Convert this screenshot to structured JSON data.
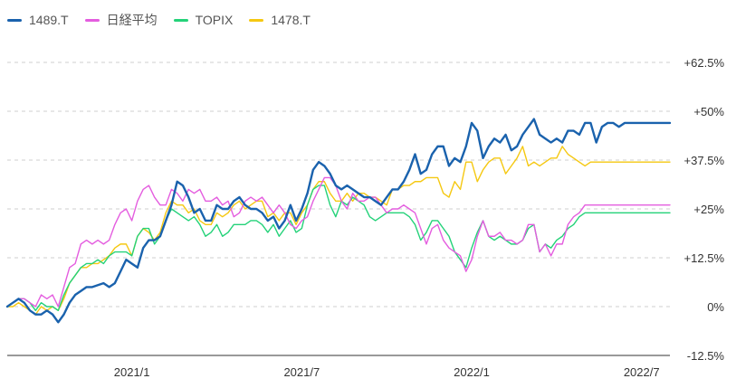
{
  "chart_data": {
    "type": "line",
    "legend_position": "top-left",
    "grid": "horizontal dashed",
    "y_ticks": [
      "+62.5%",
      "+50%",
      "+37.5%",
      "+25%",
      "+12.5%",
      "0%",
      "-12.5%"
    ],
    "y_tick_values": [
      62.5,
      50,
      37.5,
      25,
      12.5,
      0,
      -12.5
    ],
    "ylim": [
      -12.5,
      62.5
    ],
    "x_ticks": [
      "2021/1",
      "2021/7",
      "2022/1",
      "2022/7"
    ],
    "x_tick_index": [
      22,
      52,
      82,
      112
    ],
    "x_count": 118,
    "series": [
      {
        "name": "1489.T",
        "color": "#1a62ad",
        "values": [
          0,
          1,
          2,
          1,
          -1,
          -2,
          -2,
          -1,
          -2,
          -4,
          -2,
          1,
          3,
          4,
          5,
          5,
          5.5,
          6,
          5,
          6,
          9,
          12,
          11,
          10,
          15,
          17,
          17,
          18,
          22,
          26,
          32,
          31,
          28,
          24,
          25,
          22,
          22,
          26,
          25,
          25,
          27,
          28,
          26,
          25,
          25,
          24,
          22,
          23,
          20,
          22,
          26,
          22,
          25,
          29,
          35,
          37,
          36,
          34,
          31,
          30,
          31,
          30,
          29,
          28,
          28,
          27,
          26,
          28,
          30,
          30,
          32,
          35,
          39,
          34,
          35,
          39,
          41,
          41,
          36,
          38,
          37,
          41,
          47,
          45,
          38,
          41,
          43,
          42,
          44,
          40,
          41,
          44,
          46,
          48,
          44,
          43,
          42,
          43,
          42,
          45,
          45,
          44,
          47,
          47,
          42,
          46,
          47,
          47,
          46,
          47,
          47,
          47,
          47,
          47,
          47,
          47,
          47,
          47
        ]
      },
      {
        "name": "日経平均",
        "color": "#e45ddf",
        "values": [
          0,
          1,
          2,
          2,
          1,
          0,
          3,
          2,
          3,
          0,
          5,
          10,
          11,
          16,
          17,
          16,
          17,
          16,
          17,
          21,
          24,
          25,
          22,
          27,
          30,
          31,
          28,
          26,
          26,
          30,
          29,
          27,
          30,
          29,
          30,
          27,
          27,
          28,
          26,
          27,
          23,
          24,
          27,
          28,
          27,
          28,
          26,
          24,
          26,
          24,
          21,
          20,
          22,
          23,
          27,
          30,
          33,
          33,
          31,
          27,
          25,
          29,
          27,
          27,
          28,
          28,
          26,
          24,
          25,
          25,
          26,
          25,
          24,
          20,
          16,
          20,
          21,
          17,
          15,
          14,
          13,
          9,
          12,
          18,
          22,
          18,
          18,
          19,
          17,
          17,
          16,
          17,
          21,
          21,
          14,
          16,
          13,
          16,
          16,
          21,
          23,
          24,
          26,
          26,
          26,
          26,
          26,
          26,
          26,
          26,
          26,
          26,
          26,
          26,
          26,
          26,
          26,
          26
        ]
      },
      {
        "name": "TOPIX",
        "color": "#24d279",
        "values": [
          0,
          1,
          2,
          2,
          1,
          -1,
          1,
          0,
          0,
          -1,
          3,
          6,
          8,
          10,
          11,
          11,
          12,
          11,
          13,
          14,
          14,
          14,
          13,
          18,
          20,
          20,
          16,
          18,
          22,
          25,
          24,
          23,
          22,
          23,
          21,
          18,
          19,
          21,
          18,
          19,
          21,
          21,
          21,
          22,
          22,
          21,
          19,
          21,
          18,
          20,
          22,
          19,
          20,
          26,
          30,
          31,
          31,
          26,
          23,
          27,
          26,
          28,
          27,
          26,
          23,
          22,
          23,
          24,
          24,
          24,
          24,
          23,
          21,
          17,
          19,
          22,
          22,
          20,
          18,
          14,
          12,
          10,
          15,
          19,
          22,
          18,
          17,
          18,
          17,
          16,
          16,
          17,
          20,
          21,
          14,
          16,
          15,
          17,
          18,
          20,
          21,
          23,
          24,
          24,
          24,
          24,
          24,
          24,
          24,
          24,
          24,
          24,
          24,
          24,
          24,
          24,
          24,
          24
        ]
      },
      {
        "name": "1478.T",
        "color": "#f5c811",
        "values": [
          0,
          0,
          1,
          0,
          -1,
          -2,
          0,
          -1,
          0,
          -1,
          2,
          6,
          8,
          10,
          10,
          11,
          11,
          12,
          13,
          15,
          16,
          16,
          13,
          18,
          20,
          19,
          17,
          19,
          24,
          27,
          26,
          26,
          24,
          25,
          22,
          21,
          21,
          24,
          23,
          24,
          26,
          27,
          25,
          26,
          27,
          27,
          23,
          24,
          22,
          24,
          24,
          21,
          24,
          26,
          30,
          32,
          32,
          29,
          27,
          27,
          29,
          27,
          29,
          29,
          28,
          28,
          27,
          26,
          30,
          30,
          31,
          31,
          32,
          32,
          33,
          33,
          33,
          29,
          28,
          32,
          30,
          37,
          37,
          32,
          35,
          37,
          38,
          38,
          34,
          36,
          38,
          41,
          36,
          37,
          36,
          37,
          38,
          38,
          41,
          39,
          38,
          37,
          36,
          37,
          37,
          37,
          37,
          37,
          37,
          37,
          37,
          37,
          37,
          37,
          37,
          37,
          37,
          37
        ]
      }
    ]
  }
}
